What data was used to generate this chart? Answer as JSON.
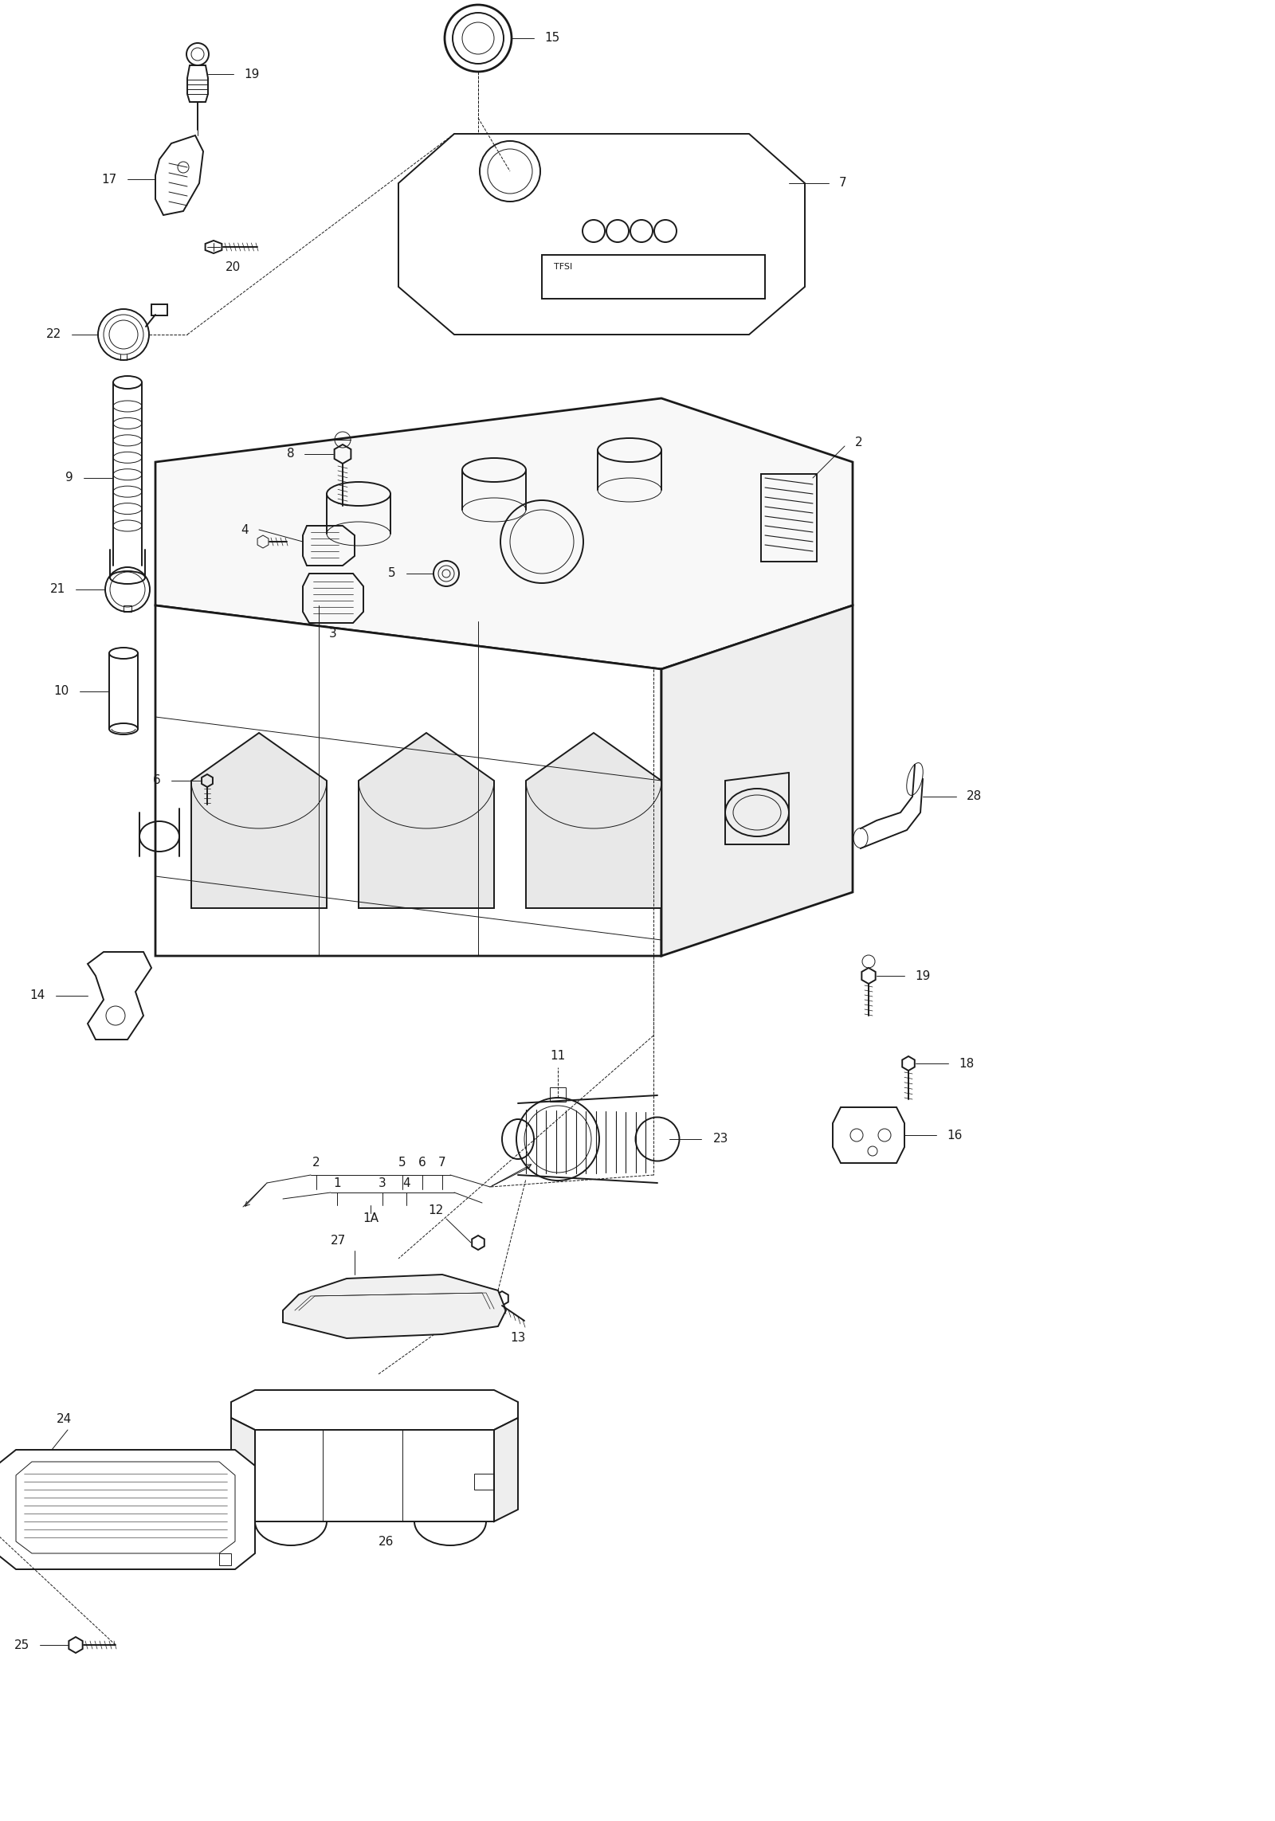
{
  "bg_color": "#ffffff",
  "line_color": "#1a1a1a",
  "lw_main": 1.4,
  "lw_thin": 0.7,
  "lw_thick": 2.0,
  "fs_label": 11,
  "fig_w": 16.0,
  "fig_h": 22.86,
  "dpi": 100
}
